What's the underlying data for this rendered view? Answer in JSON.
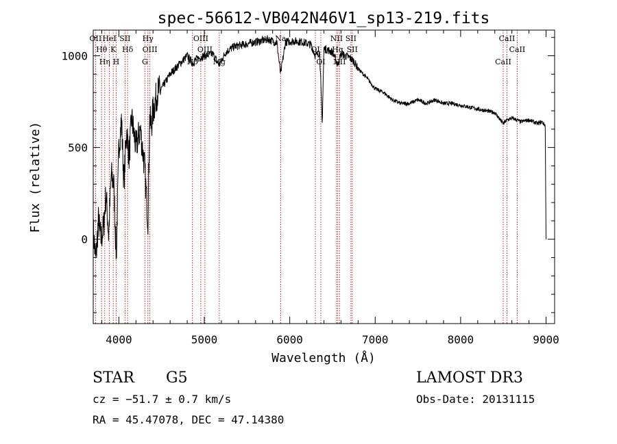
{
  "chart_data": {
    "type": "line",
    "title": "spec-56612-VB042N46V1_sp13-219.fits",
    "xlabel": "Wavelength (Å)",
    "ylabel": "Flux (relative)",
    "xlim": [
      3700,
      9100
    ],
    "ylim": [
      -460,
      1140
    ],
    "x_ticks": [
      4000,
      5000,
      6000,
      7000,
      8000,
      9000
    ],
    "x_tick_labels": [
      "4000",
      "5000",
      "6000",
      "7000",
      "8000",
      "9000"
    ],
    "y_ticks": [
      0,
      500,
      1000
    ],
    "y_tick_labels": [
      "0",
      "500",
      "1000"
    ],
    "grid": false,
    "series": [
      {
        "name": "spectrum",
        "x": [
          3700,
          3730,
          3760,
          3790,
          3820,
          3850,
          3880,
          3910,
          3940,
          3970,
          4000,
          4030,
          4060,
          4090,
          4120,
          4150,
          4200,
          4250,
          4300,
          4340,
          4360,
          4380,
          4400,
          4450,
          4500,
          4600,
          4700,
          4800,
          4861,
          4900,
          5000,
          5100,
          5175,
          5250,
          5350,
          5450,
          5550,
          5650,
          5750,
          5850,
          5893,
          5950,
          6050,
          6150,
          6250,
          6300,
          6350,
          6380,
          6400,
          6450,
          6500,
          6563,
          6600,
          6650,
          6700,
          6750,
          6800,
          6900,
          7000,
          7100,
          7200,
          7300,
          7400,
          7500,
          7600,
          7700,
          7800,
          7900,
          8000,
          8100,
          8200,
          8300,
          8400,
          8498,
          8542,
          8600,
          8662,
          8700,
          8800,
          8900,
          8950,
          8990,
          9000
        ],
        "values": [
          50,
          -120,
          100,
          0,
          60,
          250,
          20,
          350,
          300,
          -100,
          500,
          650,
          300,
          600,
          450,
          660,
          500,
          600,
          400,
          100,
          650,
          620,
          700,
          800,
          820,
          900,
          950,
          1000,
          960,
          980,
          1000,
          1010,
          950,
          1020,
          1050,
          1060,
          1070,
          1080,
          1090,
          1070,
          900,
          1075,
          1080,
          1075,
          1060,
          1000,
          1020,
          630,
          1040,
          1030,
          1020,
          950,
          1010,
          1000,
          990,
          970,
          930,
          880,
          820,
          800,
          760,
          740,
          740,
          760,
          740,
          760,
          740,
          740,
          730,
          720,
          710,
          700,
          690,
          630,
          650,
          660,
          650,
          640,
          650,
          630,
          640,
          620,
          0
        ]
      }
    ],
    "line_markers": [
      {
        "name": "OII",
        "x": 3727
      },
      {
        "name": "Hθ",
        "x": 3798
      },
      {
        "name": "Hη",
        "x": 3835
      },
      {
        "name": "HeI",
        "x": 3889
      },
      {
        "name": "K",
        "x": 3934
      },
      {
        "name": "H",
        "x": 3968
      },
      {
        "name": "SII",
        "x": 4072
      },
      {
        "name": "Hδ",
        "x": 4102
      },
      {
        "name": "G",
        "x": 4305
      },
      {
        "name": "Hγ",
        "x": 4340
      },
      {
        "name": "OIII",
        "x": 4363
      },
      {
        "name": "Hβ",
        "x": 4861
      },
      {
        "name": "OIII",
        "x": 4959
      },
      {
        "name": "OIII",
        "x": 5007
      },
      {
        "name": "Mg",
        "x": 5175
      },
      {
        "name": "Na",
        "x": 5893
      },
      {
        "name": "OI",
        "x": 6300
      },
      {
        "name": "OI",
        "x": 6364
      },
      {
        "name": "NII",
        "x": 6548
      },
      {
        "name": "Hα",
        "x": 6563
      },
      {
        "name": "NII",
        "x": 6583
      },
      {
        "name": "SII",
        "x": 6716
      },
      {
        "name": "SII",
        "x": 6731
      },
      {
        "name": "CaII",
        "x": 8498
      },
      {
        "name": "CaII",
        "x": 8542
      },
      {
        "name": "CaII",
        "x": 8662
      }
    ]
  },
  "info": {
    "object_class": "STAR",
    "subclass": "G5",
    "survey": "LAMOST DR3",
    "cz": "cz = −51.7 ± 0.7 km/s",
    "obs_date": "Obs-Date: 20131115",
    "radec": "RA =  45.47078, DEC =  47.14380"
  },
  "colors": {
    "spectrum": "#000000",
    "marker": "#b22222",
    "axis": "#000000"
  }
}
